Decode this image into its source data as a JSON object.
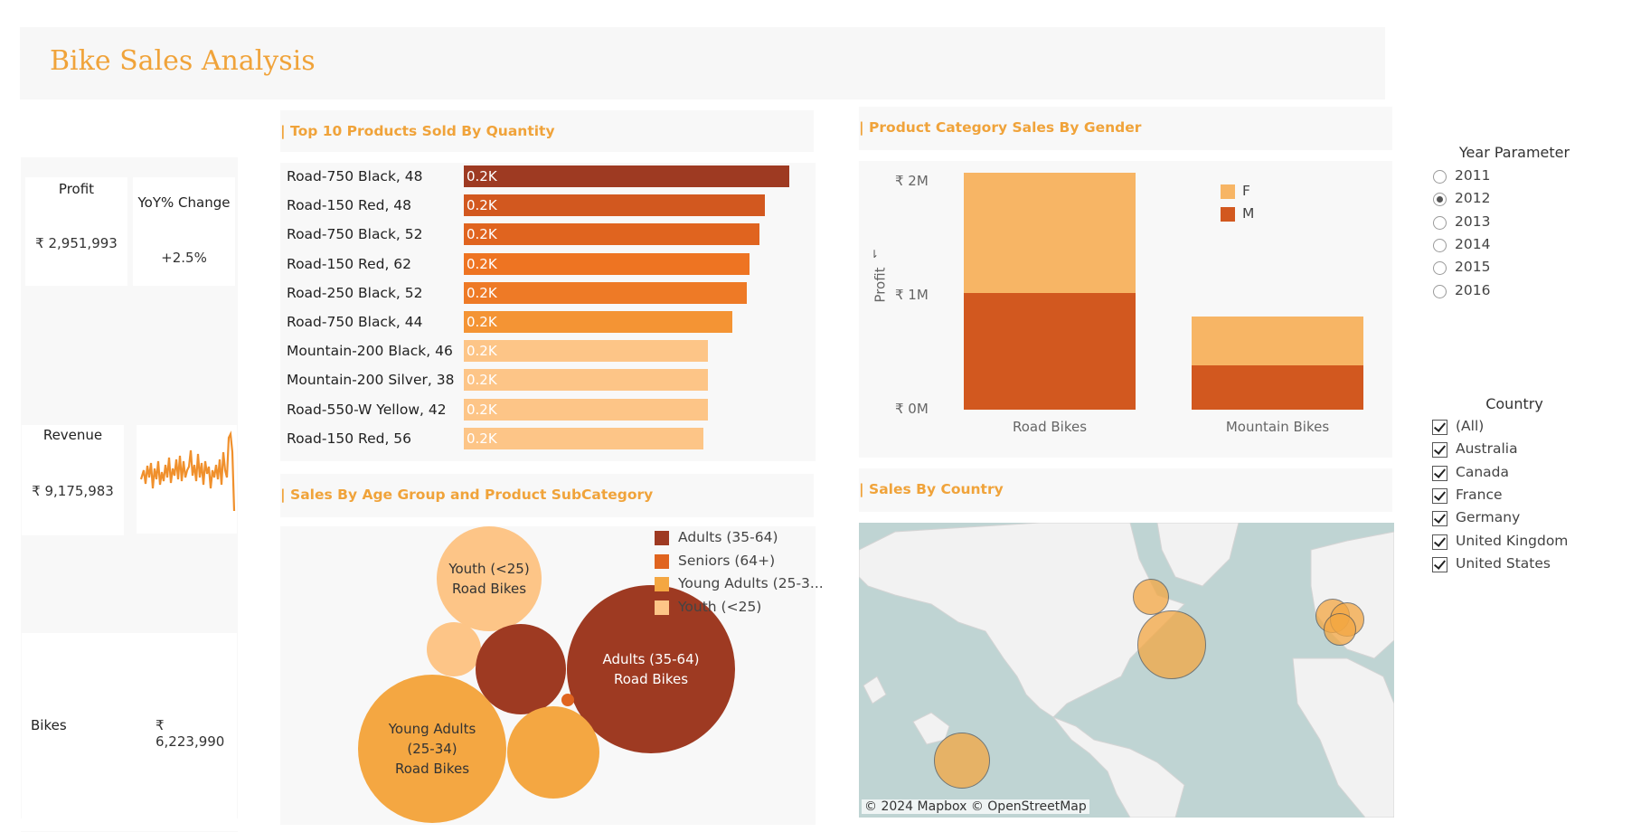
{
  "title": "Bike Sales Analysis",
  "kpis": {
    "profit_label": "Profit",
    "profit_value": "₹ 2,951,993",
    "yoy_label": "YoY% Change",
    "yoy_value": "+2.5%",
    "revenue_label": "Revenue",
    "revenue_value": "₹ 9,175,983",
    "category_label": "Bikes",
    "category_value": "₹ 6,223,990"
  },
  "top_products": {
    "title": "| Top 10 Products Sold By Quantity",
    "chart_data": {
      "type": "bar",
      "categories": [
        "Road-750 Black, 48",
        "Road-150 Red, 48",
        "Road-750 Black, 52",
        "Road-150 Red, 62",
        "Road-250 Black, 52",
        "Road-750 Black, 44",
        "Mountain-200 Black, 46",
        "Mountain-200 Silver, 38",
        "Road-550-W Yellow, 42",
        "Road-150 Red, 56"
      ],
      "values": [
        235,
        217,
        213,
        206,
        204,
        194,
        176,
        176,
        176,
        173
      ],
      "data_labels": [
        "0.2K",
        "0.2K",
        "0.2K",
        "0.2K",
        "0.2K",
        "0.2K",
        "0.2K",
        "0.2K",
        "0.2K",
        "0.2K"
      ],
      "colors": [
        "#9e3a22",
        "#d2581f",
        "#e0641f",
        "#ee7422",
        "#ee7a26",
        "#f49434",
        "#fdc587",
        "#fdc587",
        "#fdc587",
        "#fdc587"
      ]
    }
  },
  "gender_chart": {
    "title": "| Product Category Sales By Gender",
    "chart_data": {
      "type": "bar",
      "categories": [
        "Road Bikes",
        "Mountain Bikes"
      ],
      "series": [
        {
          "name": "M",
          "values": [
            1.02,
            0.39
          ],
          "color": "#d2581f"
        },
        {
          "name": "F",
          "values": [
            1.06,
            0.43
          ],
          "color": "#f7b565"
        }
      ],
      "ylabel": "Profit",
      "yticks": [
        "₹ 0M",
        "₹ 1M",
        "₹ 2M"
      ],
      "ylim": [
        0,
        2.1
      ],
      "legend_placement": "top-right"
    }
  },
  "age_chart": {
    "title": "| Sales By Age Group and Product SubCategory",
    "chart_data": {
      "type": "bubble",
      "legend": [
        {
          "name": "Adults (35-64)",
          "color": "#9e3a22"
        },
        {
          "name": "Seniors (64+)",
          "color": "#e0641f"
        },
        {
          "name": "Young Adults (25-3...",
          "color": "#f4a742"
        },
        {
          "name": "Youth (<25)",
          "color": "#fdc587"
        }
      ],
      "bubbles": [
        {
          "group": "Youth (<25)",
          "subcategory": "Road Bikes",
          "label_line1": "Youth (<25)",
          "label_line2": "Road Bikes",
          "color": "#fdc587",
          "size": 1.0
        },
        {
          "group": "Youth (<25)",
          "subcategory": "",
          "color": "#fdc587",
          "size": 0.27
        },
        {
          "group": "Adults (35-64)",
          "subcategory": "",
          "color": "#9e3a22",
          "size": 0.7
        },
        {
          "group": "Adults (35-64)",
          "subcategory": "Road Bikes",
          "label_line1": "Adults (35-64)",
          "label_line2": "Road Bikes",
          "color": "#9e3a22",
          "size": 2.5
        },
        {
          "group": "Young Adults (25-34)",
          "subcategory": "Road Bikes",
          "label_line1": "Young Adults",
          "label_line2": "(25-34)",
          "label_line3": "Road Bikes",
          "color": "#f4a742",
          "size": 2.0
        },
        {
          "group": "Young Adults (25-34)",
          "subcategory": "",
          "color": "#f4a742",
          "size": 0.75
        },
        {
          "group": "Seniors (64+)",
          "subcategory": "",
          "color": "#e0641f",
          "size": 0.01
        }
      ]
    }
  },
  "country_map": {
    "title": "| Sales By Country",
    "credits": "© 2024 Mapbox  © OpenStreetMap",
    "bubbles": [
      {
        "country": "Canada",
        "color": "#f4a742"
      },
      {
        "country": "United States",
        "color": "#f4a742"
      },
      {
        "country": "United Kingdom",
        "color": "#f4a742"
      },
      {
        "country": "Germany",
        "color": "#f4a742"
      },
      {
        "country": "France",
        "color": "#f4a742"
      },
      {
        "country": "Australia",
        "color": "#f4a742"
      }
    ]
  },
  "year_filter": {
    "title": "Year Parameter",
    "options": [
      "2011",
      "2012",
      "2013",
      "2014",
      "2015",
      "2016"
    ],
    "selected": "2012"
  },
  "country_filter": {
    "title": "Country",
    "options": [
      "(All)",
      "Australia",
      "Canada",
      "France",
      "Germany",
      "United Kingdom",
      "United States"
    ]
  },
  "colors": {
    "accent": "#f0a33a",
    "panel_bg": "#f8f8f8"
  }
}
